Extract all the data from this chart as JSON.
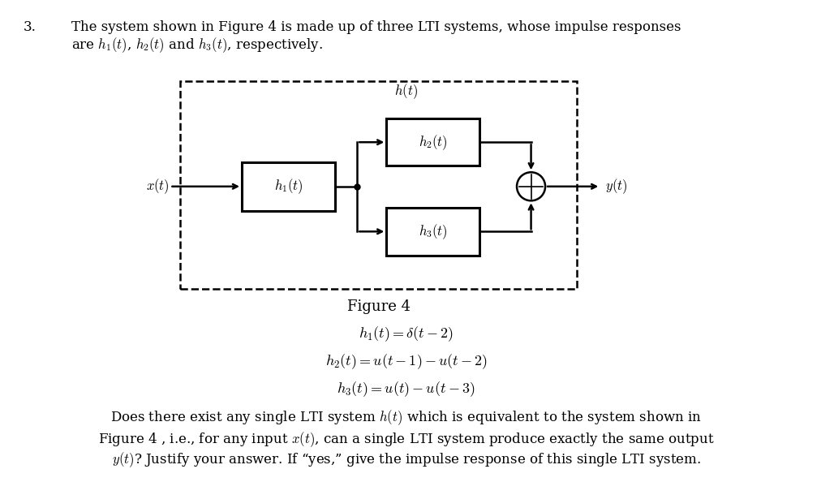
{
  "bg_color": "#ffffff",
  "fig_width": 10.28,
  "fig_height": 5.94,
  "title_number": "3.",
  "title_line1": "The system shown in Figure 4 is made up of three LTI systems, whose impulse responses",
  "title_line2": "are $h_1(t)$, $h_2(t)$ and $h_3(t)$, respectively.",
  "figure_caption": "Figure 4",
  "eq1": "$h_1(t) = \\delta(t - 2)$",
  "eq2": "$h_2(t) = u(t - 1) - u(t - 2)$",
  "eq3": "$h_3(t) = u(t) - u(t - 3)$",
  "bottom1": "Does there exist any single LTI system $h(t)$ which is equivalent to the system shown in",
  "bottom2": "Figure 4 , i.e., for any input $x(t)$, can a single LTI system produce exactly the same output",
  "bottom3": "$y(t)$? Justify your answer. If “yes,” give the impulse response of this single LTI system.",
  "label_xt": "$x(t)$",
  "label_yt": "$y(t)$",
  "label_h1": "$h_1(t)$",
  "label_h2": "$h_2(t)$",
  "label_h3": "$h_3(t)$",
  "label_ht": "$h(t)$",
  "serif_font": "DejaVu Serif",
  "fs_main": 12,
  "fs_eq": 13,
  "fs_label": 11.5
}
